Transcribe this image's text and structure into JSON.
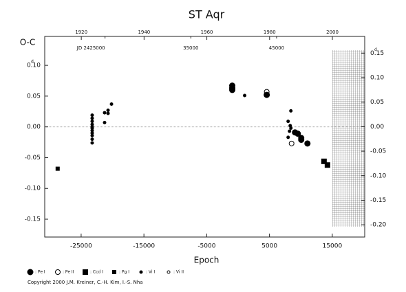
{
  "chart_data": {
    "type": "scatter",
    "title": "ST Aqr",
    "y_label": "O-C",
    "y_unit": "d",
    "x_label": "Epoch",
    "xlim": [
      -30800,
      20165
    ],
    "xticks": [
      -25000,
      -15000,
      -5000,
      5000,
      15000
    ],
    "ylim": [
      -0.179,
      0.147
    ],
    "yticks": [
      {
        "value": -0.15,
        "label": "-0.15"
      },
      {
        "value": -0.1,
        "label": "-0.10"
      },
      {
        "value": -0.05,
        "label": "-0.05"
      },
      {
        "value": 0,
        "label": "0.00"
      },
      {
        "value": 0.05,
        "label": "0.05"
      },
      {
        "value": 0.1,
        "label": "0.10"
      }
    ],
    "y2lim": [
      -0.225,
      0.184
    ],
    "y2ticks": [
      {
        "value": -0.2,
        "label": "-0.20"
      },
      {
        "value": -0.15,
        "label": "-0.15"
      },
      {
        "value": -0.1,
        "label": "-0.10"
      },
      {
        "value": -0.05,
        "label": "-0.05"
      },
      {
        "value": 0,
        "label": "0.00"
      },
      {
        "value": 0.05,
        "label": "0.05"
      },
      {
        "value": 0.1,
        "label": "0.10"
      },
      {
        "value": 0.15,
        "label": "0.15"
      }
    ],
    "yearlim": [
      1908.35,
      2010.3
    ],
    "yearticks": [
      1920,
      1940,
      1960,
      1980,
      2000
    ],
    "jdlim": [
      2417968,
      2455274
    ],
    "jdticks": [
      {
        "value": 2425000,
        "label": "JD 2425000"
      },
      {
        "value": 2435000,
        "label": "35000"
      },
      {
        "value": 2445000,
        "label": "45000"
      }
    ],
    "series": [
      {
        "name": ": Pe I",
        "marker": "circle",
        "filled": true,
        "size": 4,
        "color": "#000000",
        "x": [
          -934,
          -934,
          -934,
          4560,
          9066,
          9505,
          10055,
          10055,
          11044
        ],
        "values": [
          0.067,
          0.063,
          0.06,
          0.052,
          -0.009,
          -0.011,
          -0.018,
          -0.021,
          -0.027
        ]
      },
      {
        "name": ": Pe II",
        "marker": "circle",
        "filled": false,
        "size": 3.5,
        "color": "#000000",
        "x": [
          4560,
          8516
        ],
        "values": [
          0.057,
          -0.027
        ]
      },
      {
        "name": ": Ccd I",
        "marker": "square",
        "filled": true,
        "size": 7,
        "color": "#000000",
        "x": [
          13681,
          14231
        ],
        "values": [
          -0.056,
          -0.062
        ]
      },
      {
        "name": ": Pg I",
        "marker": "square",
        "filled": true,
        "size": 5,
        "color": "#000000",
        "x": [
          -28740
        ],
        "values": [
          -0.068
        ]
      },
      {
        "name": ": Vi I",
        "marker": "circle",
        "filled": true,
        "size": 2,
        "color": "#000000",
        "x": [
          -23242,
          -23242,
          -23242,
          -23242,
          -23242,
          -23242,
          -23242,
          -23242,
          -23242,
          -23242,
          -23242,
          -21264,
          -21264,
          -20714,
          -20714,
          -20165,
          1044,
          8407,
          7967,
          8297,
          8407,
          8187,
          7967
        ],
        "values": [
          0.019,
          0.014,
          0.009,
          0.004,
          0.0,
          -0.002,
          -0.006,
          -0.01,
          -0.014,
          -0.02,
          -0.026,
          0.023,
          0.007,
          0.022,
          0.027,
          0.037,
          0.051,
          0.026,
          0.009,
          0.002,
          -0.002,
          -0.007,
          -0.017
        ]
      },
      {
        "name": ": Vi II",
        "marker": "circle",
        "filled": false,
        "size": 2,
        "color": "#000000",
        "x": [],
        "values": []
      }
    ],
    "copyright": "Copyright 2000 J.M. Kreiner, C.-H. Kim, I.-S. Nha"
  }
}
